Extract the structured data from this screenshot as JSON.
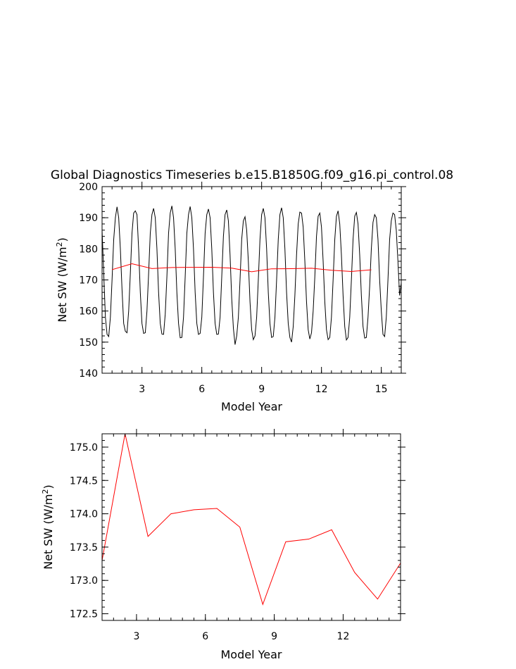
{
  "title": "Global Diagnostics Timeseries b.e15.B1850G.f09_g16.pi_control.08",
  "colors": {
    "monthly_line": "#000000",
    "annual_line": "#ff0000",
    "frame": "#000000"
  },
  "chart_data": [
    {
      "type": "line",
      "title": "Global Diagnostics Timeseries b.e15.B1850G.f09_g16.pi_control.08",
      "xlabel": "Model Year",
      "ylabel": "Net SW (W/m²)",
      "xlim": [
        1,
        16
      ],
      "ylim": [
        140,
        200
      ],
      "xticks": [
        3,
        6,
        9,
        12,
        15
      ],
      "yticks": [
        140,
        150,
        160,
        170,
        180,
        190,
        200
      ],
      "grid": false,
      "series": [
        {
          "role": "monthly",
          "color": "#000000",
          "monthly_values_by_year": [
            [
              186.0,
              172.0,
              158.0,
              152.5,
              151.8,
              158.0,
              170.0,
              183.0,
              190.0,
              193.5,
              190.0,
              180.0
            ],
            [
              167.0,
              156.0,
              153.5,
              153.0,
              160.0,
              172.0,
              185.0,
              191.5,
              192.2,
              191.0,
              180.0,
              166.0
            ],
            [
              156.0,
              152.8,
              153.0,
              160.0,
              172.0,
              185.0,
              191.0,
              193.0,
              190.0,
              180.0,
              166.0,
              156.0
            ],
            [
              152.6,
              152.5,
              159.0,
              171.0,
              185.0,
              191.5,
              193.8,
              190.0,
              180.0,
              166.0,
              156.0,
              151.4
            ],
            [
              151.5,
              158.0,
              171.0,
              185.0,
              191.0,
              193.6,
              190.0,
              180.0,
              166.0,
              156.0,
              152.5,
              152.8
            ],
            [
              158.0,
              171.0,
              185.0,
              191.0,
              192.8,
              190.0,
              180.0,
              166.0,
              156.0,
              152.5,
              152.6,
              158.0
            ],
            [
              171.0,
              184.0,
              191.0,
              192.5,
              189.0,
              178.0,
              164.0,
              154.5,
              149.2,
              152.0,
              158.0,
              170.0
            ],
            [
              183.0,
              189.0,
              190.3,
              186.0,
              176.0,
              163.0,
              154.0,
              150.8,
              152.0,
              158.0,
              170.0,
              183.0
            ],
            [
              191.0,
              193.0,
              190.0,
              180.0,
              166.0,
              156.0,
              151.5,
              151.8,
              158.0,
              170.0,
              183.0,
              191.0
            ],
            [
              193.2,
              190.0,
              180.0,
              166.0,
              156.0,
              151.5,
              150.0,
              155.0,
              165.0,
              178.0,
              188.0,
              191.8
            ],
            [
              191.5,
              187.0,
              176.0,
              163.0,
              154.0,
              151.0,
              153.0,
              160.0,
              171.0,
              184.0,
              190.5,
              191.5
            ],
            [
              187.0,
              176.0,
              163.0,
              154.0,
              150.8,
              151.5,
              158.0,
              170.0,
              183.0,
              190.5,
              192.2,
              188.0
            ],
            [
              178.0,
              165.0,
              155.0,
              150.7,
              151.5,
              158.0,
              170.0,
              183.0,
              190.5,
              191.7,
              188.0,
              178.0
            ],
            [
              165.0,
              155.0,
              151.3,
              151.5,
              158.0,
              168.0,
              180.0,
              188.5,
              191.0,
              190.0,
              183.0,
              170.0
            ],
            [
              160.0,
              152.5,
              151.8,
              158.0,
              170.0,
              183.0,
              189.0,
              191.5,
              191.0,
              186.0,
              176.0,
              165.0
            ]
          ]
        },
        {
          "role": "annual",
          "color": "#ff0000",
          "x": [
            1.5,
            2.5,
            3.5,
            4.5,
            5.5,
            6.5,
            7.5,
            8.5,
            9.5,
            10.5,
            11.5,
            12.5,
            13.5,
            14.5
          ],
          "values": [
            173.3,
            175.2,
            173.66,
            174.0,
            174.06,
            174.08,
            173.8,
            172.64,
            173.58,
            173.62,
            173.76,
            173.12,
            172.72,
            173.26
          ]
        }
      ]
    },
    {
      "type": "line",
      "xlabel": "Model Year",
      "ylabel": "Net SW (W/m²)",
      "xlim": [
        1.5,
        14.5
      ],
      "ylim": [
        172.4,
        175.2
      ],
      "xticks": [
        3,
        6,
        9,
        12
      ],
      "yticks": [
        172.5,
        173.0,
        173.5,
        174.0,
        174.5,
        175.0
      ],
      "ytick_labels": [
        "172.5",
        "173.0",
        "173.5",
        "174.0",
        "174.5",
        "175.0"
      ],
      "grid": false,
      "series": [
        {
          "role": "annual",
          "color": "#ff0000",
          "x": [
            1.5,
            2.5,
            3.5,
            4.5,
            5.5,
            6.5,
            7.5,
            8.5,
            9.5,
            10.5,
            11.5,
            12.5,
            13.5,
            14.5
          ],
          "values": [
            173.3,
            175.2,
            173.66,
            174.0,
            174.06,
            174.08,
            173.8,
            172.64,
            173.58,
            173.62,
            173.76,
            173.12,
            172.72,
            173.26
          ]
        }
      ]
    }
  ]
}
